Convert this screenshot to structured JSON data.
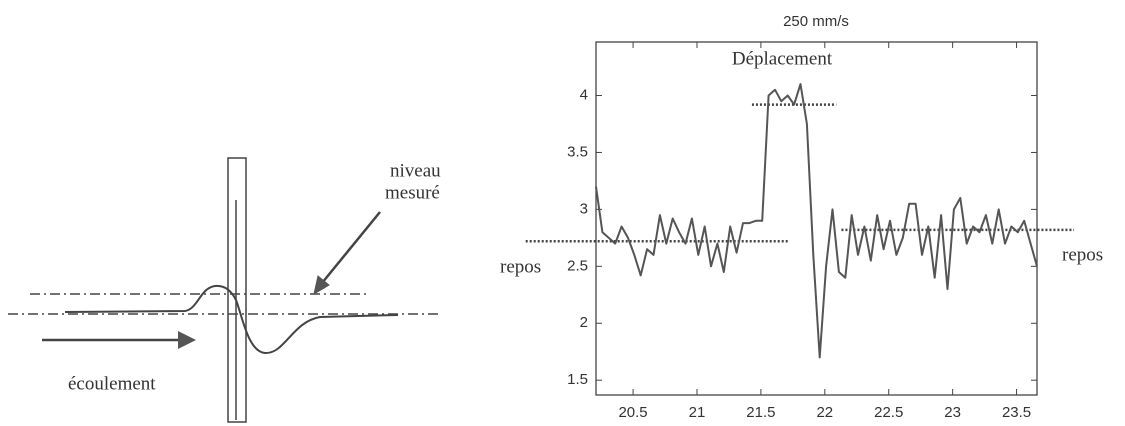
{
  "diagram": {
    "labels": [
      "niveau",
      "mesuré",
      "écoulement"
    ]
  },
  "chart_data": {
    "type": "line",
    "title": "250 mm/s",
    "x": [
      20.21,
      20.26,
      20.31,
      20.36,
      20.41,
      20.46,
      20.51,
      20.56,
      20.61,
      20.66,
      20.71,
      20.76,
      20.81,
      20.86,
      20.91,
      20.96,
      21.01,
      21.06,
      21.11,
      21.16,
      21.21,
      21.26,
      21.31,
      21.36,
      21.41,
      21.46,
      21.51,
      21.56,
      21.61,
      21.66,
      21.71,
      21.76,
      21.81,
      21.86,
      21.91,
      21.96,
      22.01,
      22.06,
      22.11,
      22.16,
      22.21,
      22.26,
      22.31,
      22.36,
      22.41,
      22.46,
      22.51,
      22.56,
      22.61,
      22.66,
      22.71,
      22.76,
      22.81,
      22.86,
      22.91,
      22.96,
      23.01,
      23.06,
      23.11,
      23.16,
      23.21,
      23.26,
      23.31,
      23.36,
      23.41,
      23.46,
      23.51,
      23.56,
      23.61,
      23.66
    ],
    "values": [
      3.2,
      2.8,
      2.75,
      2.7,
      2.85,
      2.75,
      2.6,
      2.42,
      2.65,
      2.6,
      2.95,
      2.7,
      2.92,
      2.8,
      2.7,
      2.92,
      2.6,
      2.85,
      2.5,
      2.7,
      2.45,
      2.85,
      2.62,
      2.88,
      2.88,
      2.9,
      2.9,
      4.0,
      4.05,
      3.95,
      4.0,
      3.92,
      4.1,
      3.75,
      2.6,
      1.7,
      2.5,
      3.0,
      2.45,
      2.4,
      2.95,
      2.6,
      2.85,
      2.55,
      2.95,
      2.65,
      2.9,
      2.6,
      2.75,
      3.05,
      3.05,
      2.6,
      2.85,
      2.4,
      2.95,
      2.3,
      3.0,
      3.1,
      2.7,
      2.85,
      2.8,
      2.95,
      2.7,
      3.0,
      2.7,
      2.85,
      2.8,
      2.9,
      2.7,
      2.5
    ],
    "color": "#555555",
    "xlim": [
      20.21,
      23.66
    ],
    "ylim": [
      1.37,
      4.47
    ],
    "xticks": [
      20.5,
      21,
      21.5,
      22,
      22.5,
      23,
      23.5
    ],
    "yticks": [
      1.5,
      2,
      2.5,
      3,
      3.5,
      4
    ],
    "reference_lines": [
      {
        "y": 2.72,
        "x": [
          19.66,
          21.71
        ]
      },
      {
        "y": 3.92,
        "x": [
          21.43,
          22.09
        ]
      },
      {
        "y": 2.82,
        "x": [
          22.13,
          23.95
        ]
      }
    ],
    "annotations": [
      "Déplacement",
      "repos",
      "repos"
    ]
  }
}
